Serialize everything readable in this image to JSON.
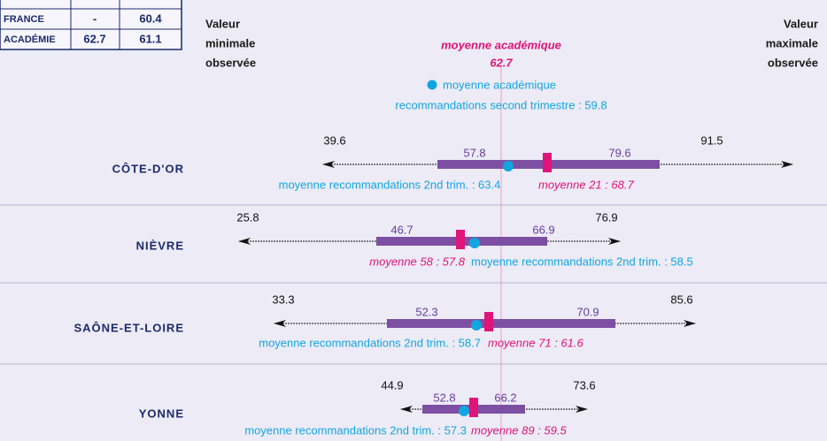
{
  "table": {
    "rows": [
      [
        "France",
        "-",
        "60.4"
      ],
      [
        "Académie",
        "62.7",
        "61.1"
      ]
    ]
  },
  "header": {
    "min_label": [
      "Valeur",
      "minimale",
      "observée"
    ],
    "max_label": [
      "Valeur",
      "maximale",
      "observée"
    ],
    "academic_title": "moyenne académique",
    "academic_value": "62.7",
    "legend_title": "moyenne académique",
    "legend_text": "recommandations second trimestre : 59.8"
  },
  "rows": [
    {
      "name": "CÔTE-D'OR",
      "min": "39.6",
      "max": "91.5",
      "low": "57.8",
      "high": "79.6",
      "reco": "moyenne recommandations 2nd trim. : 63.4",
      "mean": "moyenne 21 : 68.7"
    },
    {
      "name": "NIÈVRE",
      "min": "25.8",
      "max": "76.9",
      "low": "46.7",
      "high": "66.9",
      "reco": "moyenne recommandations 2nd trim. : 58.5",
      "mean": "moyenne 58 : 57.8"
    },
    {
      "name": "SAÔNE-ET-LOIRE",
      "min": "33.3",
      "max": "85.6",
      "low": "52.3",
      "high": "70.9",
      "reco": "moyenne recommandations 2nd trim. : 58.7",
      "mean": "moyenne 71 : 61.6"
    },
    {
      "name": "YONNE",
      "min": "44.9",
      "max": "73.6",
      "low": "52.8",
      "high": "66.2",
      "reco": "moyenne recommandations 2nd trim. : 57.3",
      "mean": "moyenne 89 : 59.5"
    }
  ]
}
